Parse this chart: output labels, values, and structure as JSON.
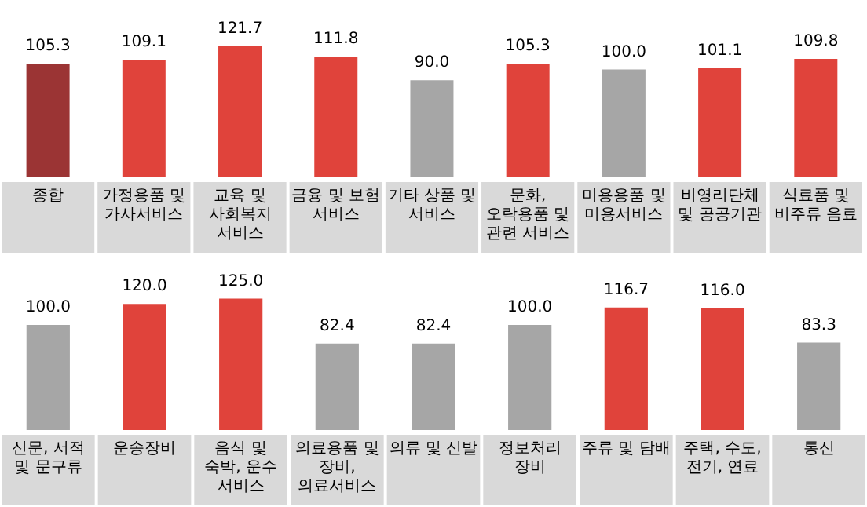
{
  "chart_data": [
    {
      "type": "bar",
      "categories": [
        "종합",
        "가정용품 및 가사서비스",
        "교육 및 사회복지 서비스",
        "금융 및 보험 서비스",
        "기타 상품 및 서비스",
        "문화, 오락용품 및 관련 서비스",
        "미용용품 및 미용서비스",
        "비영리단체 및 공공기관",
        "식료품 및 비주류 음료"
      ],
      "values": [
        105.3,
        109.1,
        121.7,
        111.8,
        90.0,
        105.3,
        100.0,
        101.1,
        109.8
      ],
      "value_labels": [
        "105.3",
        "109.1",
        "121.7",
        "111.8",
        "90.0",
        "105.3",
        "100.0",
        "101.1",
        "109.8"
      ],
      "colors": [
        "#9b3434",
        "#e0433b",
        "#e0433b",
        "#e0433b",
        "#a6a6a6",
        "#e0433b",
        "#a6a6a6",
        "#e0433b",
        "#e0433b"
      ],
      "tick_labels": "x",
      "grid": false,
      "legend": false
    },
    {
      "type": "bar",
      "categories": [
        "신문, 서적 및 문구류",
        "운송장비",
        "음식 및 숙박, 운수 서비스",
        "의료용품 및 장비, 의료서비스",
        "의류 및 신발",
        "정보처리 장비",
        "주류 및 담배",
        "주택, 수도, 전기, 연료",
        "통신"
      ],
      "values": [
        100.0,
        120.0,
        125.0,
        82.4,
        82.4,
        100.0,
        116.7,
        116.0,
        83.3
      ],
      "value_labels": [
        "100.0",
        "120.0",
        "125.0",
        "82.4",
        "82.4",
        "100.0",
        "116.7",
        "116.0",
        "83.3"
      ],
      "colors": [
        "#a6a6a6",
        "#e0433b",
        "#e0433b",
        "#a6a6a6",
        "#a6a6a6",
        "#a6a6a6",
        "#e0433b",
        "#e0433b",
        "#a6a6a6"
      ],
      "tick_labels": "x",
      "grid": false,
      "legend": false
    }
  ]
}
